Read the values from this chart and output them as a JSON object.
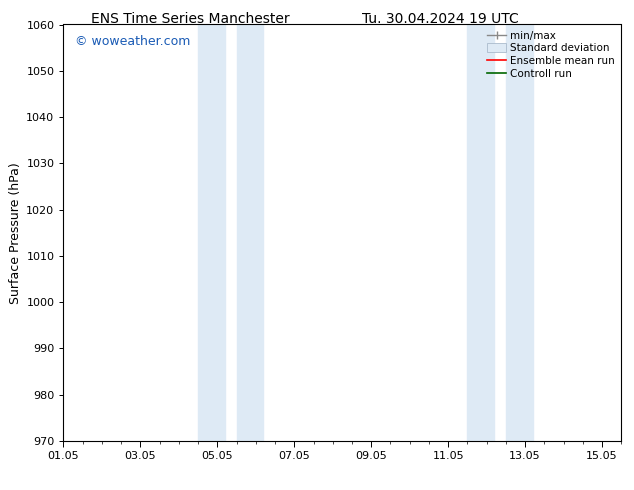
{
  "title_left": "ENS Time Series Manchester",
  "title_right": "Tu. 30.04.2024 19 UTC",
  "ylabel": "Surface Pressure (hPa)",
  "ylim": [
    970,
    1060
  ],
  "yticks": [
    970,
    980,
    990,
    1000,
    1010,
    1020,
    1030,
    1040,
    1050,
    1060
  ],
  "xlim_start": 0,
  "xlim_end": 14.5,
  "xtick_labels": [
    "01.05",
    "03.05",
    "05.05",
    "07.05",
    "09.05",
    "11.05",
    "13.05",
    "15.05"
  ],
  "xtick_positions": [
    0,
    2,
    4,
    6,
    8,
    10,
    12,
    14
  ],
  "shaded_bands": [
    {
      "x_start": 3.5,
      "x_end": 4.2
    },
    {
      "x_start": 4.5,
      "x_end": 5.2
    },
    {
      "x_start": 10.5,
      "x_end": 11.2
    },
    {
      "x_start": 11.5,
      "x_end": 12.2
    }
  ],
  "shaded_color": "#deeaf5",
  "watermark": "© woweather.com",
  "watermark_color": "#1a5bb5",
  "background_color": "#ffffff",
  "title_fontsize": 10,
  "tick_fontsize": 8,
  "ylabel_fontsize": 9,
  "watermark_fontsize": 9,
  "legend_fontsize": 7.5
}
